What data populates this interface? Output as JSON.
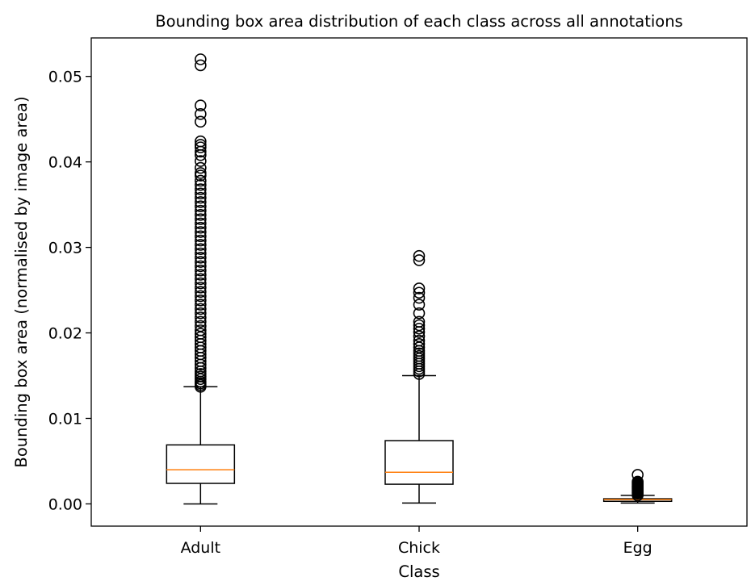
{
  "chart_data": {
    "type": "box",
    "title": "Bounding box area distribution of each class across all annotations",
    "xlabel": "Class",
    "ylabel": "Bounding box area (normalised by image area)",
    "ylim": [
      -0.0026,
      0.0545
    ],
    "yticks": [
      0.0,
      0.01,
      0.02,
      0.03,
      0.04,
      0.05
    ],
    "ytick_labels": [
      "0.00",
      "0.01",
      "0.02",
      "0.03",
      "0.04",
      "0.05"
    ],
    "categories": [
      "Adult",
      "Chick",
      "Egg"
    ],
    "boxes": [
      {
        "name": "Adult",
        "whisker_low": 0.0,
        "q1": 0.0024,
        "median": 0.004,
        "q3": 0.0069,
        "whisker_high": 0.0137,
        "outliers": [
          0.0137,
          0.0139,
          0.0141,
          0.0143,
          0.0146,
          0.0149,
          0.0152,
          0.0155,
          0.0159,
          0.0163,
          0.0167,
          0.0171,
          0.0175,
          0.0179,
          0.0183,
          0.0187,
          0.0191,
          0.0195,
          0.0199,
          0.0203,
          0.0208,
          0.0213,
          0.0218,
          0.0223,
          0.0228,
          0.0233,
          0.0238,
          0.0243,
          0.0248,
          0.0253,
          0.0258,
          0.0263,
          0.0268,
          0.0273,
          0.0278,
          0.0283,
          0.0288,
          0.0293,
          0.0298,
          0.0303,
          0.0308,
          0.0313,
          0.0318,
          0.0323,
          0.0328,
          0.0333,
          0.0338,
          0.0343,
          0.0348,
          0.0353,
          0.0358,
          0.0363,
          0.0368,
          0.0373,
          0.0378,
          0.0384,
          0.0387,
          0.0393,
          0.0401,
          0.0408,
          0.0412,
          0.0417,
          0.042,
          0.0424,
          0.0447,
          0.0456,
          0.0466,
          0.0513,
          0.052
        ]
      },
      {
        "name": "Chick",
        "whisker_low": 0.0001,
        "q1": 0.0023,
        "median": 0.0037,
        "q3": 0.0074,
        "whisker_high": 0.015,
        "outliers": [
          0.0152,
          0.0155,
          0.0158,
          0.0161,
          0.0164,
          0.0167,
          0.017,
          0.0173,
          0.0176,
          0.0179,
          0.0183,
          0.0187,
          0.0191,
          0.0196,
          0.0201,
          0.0205,
          0.0209,
          0.0213,
          0.0223,
          0.0233,
          0.0241,
          0.0247,
          0.0252,
          0.0285,
          0.029
        ]
      },
      {
        "name": "Egg",
        "whisker_low": 0.0001,
        "q1": 0.0003,
        "median": 0.0005,
        "q3": 0.0006,
        "whisker_high": 0.001,
        "outliers": [
          0.001,
          0.0012,
          0.0013,
          0.0014,
          0.0015,
          0.0016,
          0.0017,
          0.0018,
          0.0019,
          0.002,
          0.0021,
          0.0022,
          0.0023,
          0.0024,
          0.0025,
          0.0026,
          0.0034
        ]
      }
    ],
    "colors": {
      "box": "#000000",
      "median": "#ff7f0e",
      "outlier": "#000000",
      "background": "#ffffff"
    },
    "grid": false,
    "legend": "none"
  }
}
